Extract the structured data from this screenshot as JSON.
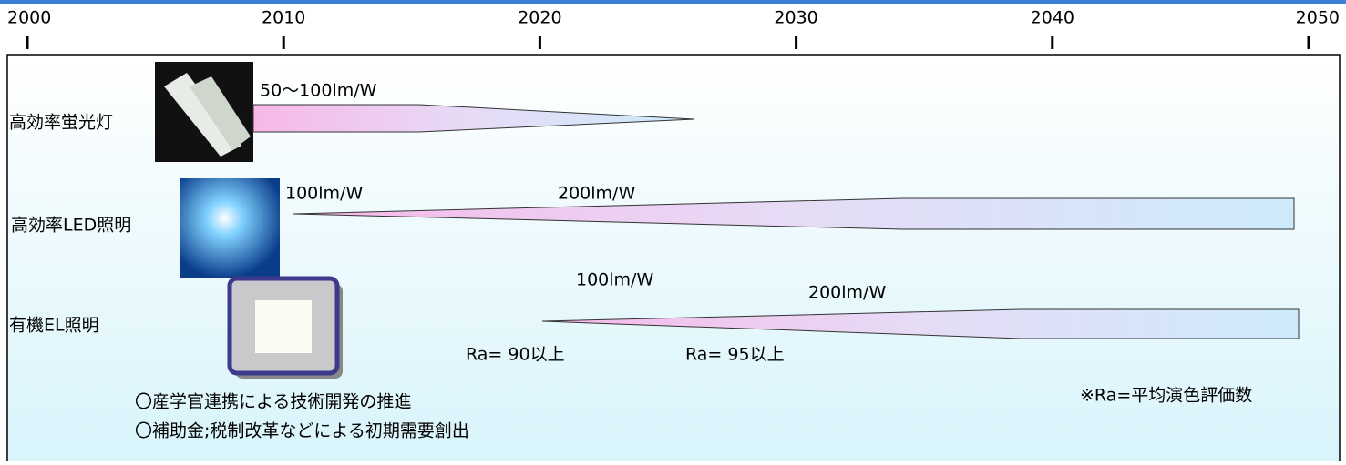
{
  "timeline": {
    "years": [
      2000,
      2010,
      2020,
      2030,
      2040,
      2050
    ]
  },
  "rows": [
    {
      "label": "高効率蛍光灯",
      "notes": [
        "50〜100lm/W"
      ]
    },
    {
      "label": "高効率LED照明",
      "notes": [
        "100lm/W",
        "200lm/W"
      ]
    },
    {
      "label": "有機EL照明",
      "notes": [
        "100lm/W",
        "200lm/W",
        "Ra= 90以上",
        "Ra= 95以上"
      ]
    }
  ],
  "footnote": "※Ra=平均演色評価数",
  "measures": [
    "〇産学官連携による技術開発の推進",
    "〇補助金;税制改革などによる初期需要創出"
  ]
}
